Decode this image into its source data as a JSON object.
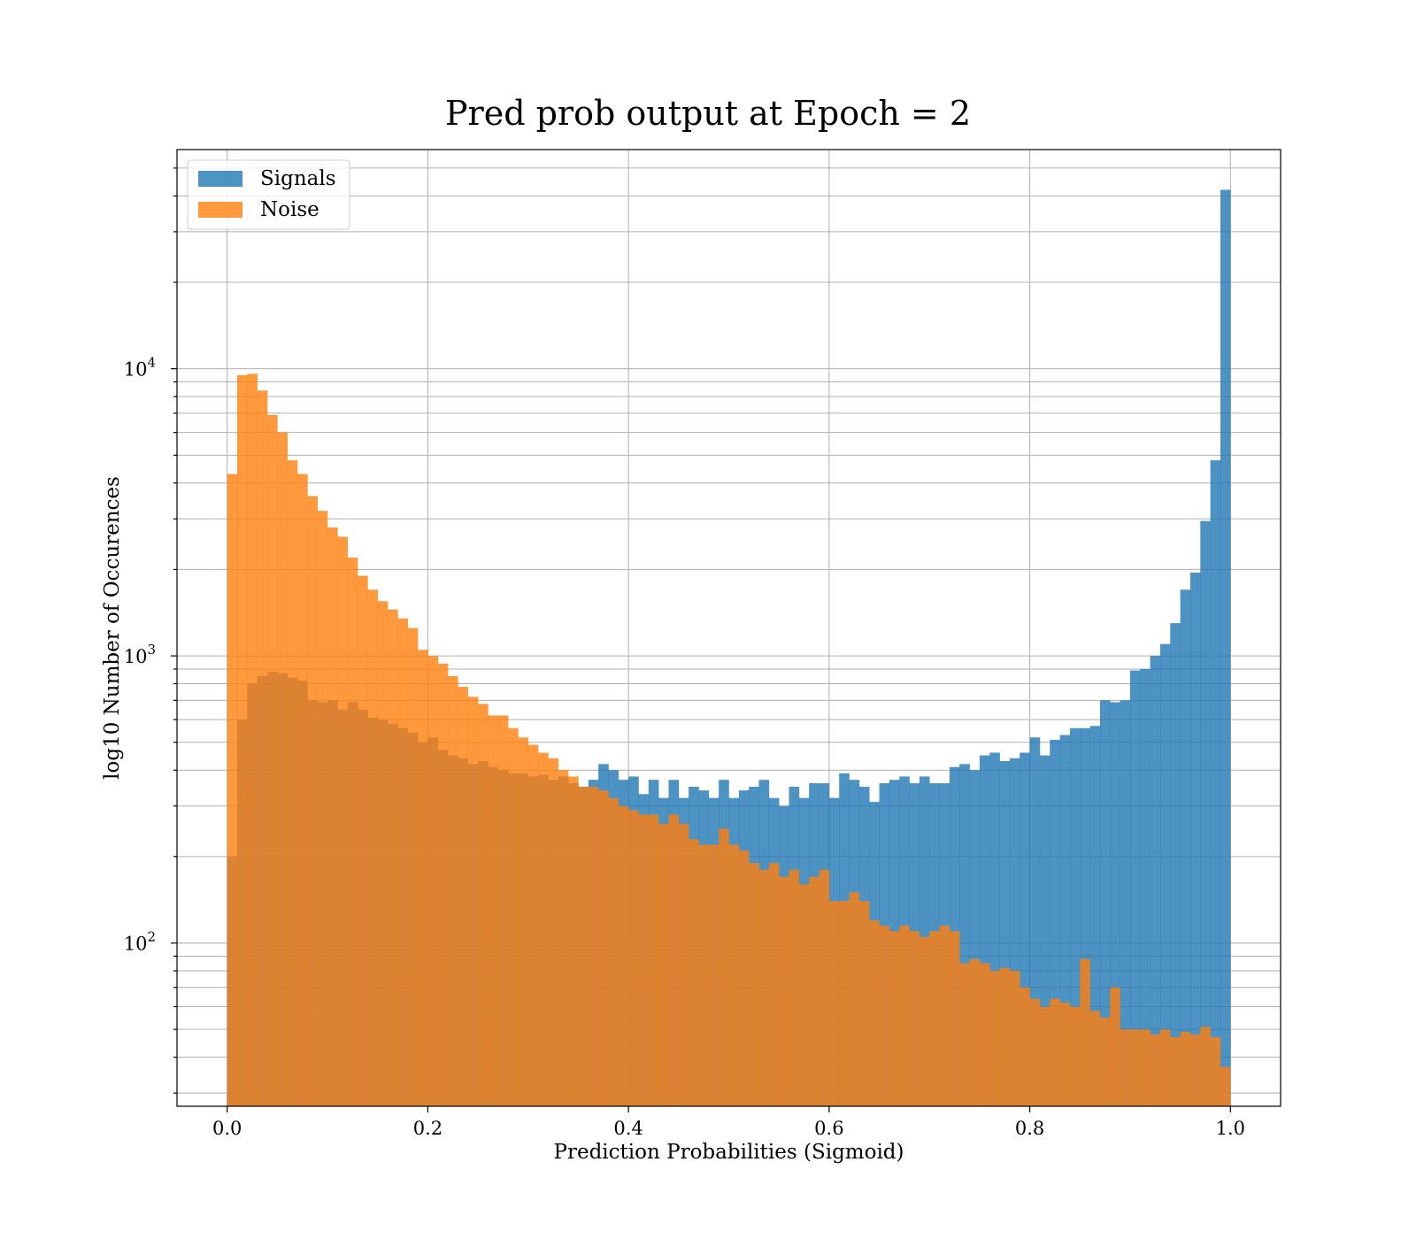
{
  "chart_data": {
    "type": "bar",
    "title": "Pred prob output at Epoch = 2",
    "xlabel": "Prediction Probabilities (Sigmoid)",
    "ylabel": "log10 Number of Occurences",
    "xlim": [
      -0.05,
      1.05
    ],
    "ylim": [
      27,
      58000
    ],
    "yscale": "log",
    "grid": true,
    "legend_position": "top-left",
    "x_ticks": [
      0.0,
      0.2,
      0.4,
      0.6,
      0.8,
      1.0
    ],
    "x_tick_labels": [
      "0.0",
      "0.2",
      "0.4",
      "0.6",
      "0.8",
      "1.0"
    ],
    "y_ticks": [
      100,
      1000,
      10000
    ],
    "y_tick_bases": [
      "10",
      "10",
      "10"
    ],
    "y_tick_exponents": [
      "2",
      "3",
      "4"
    ],
    "bins": 100,
    "bin_range": [
      0.0,
      1.0
    ],
    "series": [
      {
        "name": "Signals",
        "color": "#1f77b4",
        "opacity": 0.8,
        "values": [
          200,
          600,
          800,
          850,
          880,
          870,
          840,
          820,
          700,
          690,
          700,
          650,
          690,
          650,
          610,
          600,
          580,
          560,
          540,
          500,
          520,
          470,
          450,
          440,
          420,
          430,
          410,
          400,
          390,
          390,
          380,
          385,
          370,
          380,
          360,
          350,
          370,
          420,
          400,
          370,
          380,
          330,
          370,
          320,
          370,
          320,
          350,
          340,
          320,
          370,
          320,
          340,
          350,
          370,
          320,
          300,
          350,
          320,
          360,
          360,
          320,
          390,
          370,
          350,
          310,
          360,
          370,
          380,
          360,
          380,
          360,
          360,
          410,
          420,
          400,
          450,
          460,
          430,
          440,
          460,
          520,
          450,
          510,
          530,
          560,
          560,
          570,
          700,
          690,
          700,
          890,
          900,
          1000,
          1100,
          1300,
          1700,
          1950,
          2950,
          4800,
          42000
        ]
      },
      {
        "name": "Noise",
        "color": "#ff7f0e",
        "opacity": 0.8,
        "values": [
          4300,
          9500,
          9600,
          8400,
          6900,
          6000,
          4800,
          4300,
          3600,
          3200,
          2800,
          2600,
          2200,
          1900,
          1700,
          1550,
          1450,
          1350,
          1250,
          1050,
          1000,
          940,
          850,
          780,
          720,
          680,
          620,
          620,
          560,
          520,
          490,
          460,
          440,
          400,
          380,
          350,
          350,
          340,
          320,
          300,
          290,
          280,
          280,
          260,
          280,
          260,
          230,
          220,
          220,
          250,
          220,
          210,
          190,
          180,
          190,
          170,
          180,
          160,
          170,
          180,
          140,
          140,
          150,
          140,
          120,
          115,
          110,
          115,
          110,
          105,
          110,
          115,
          110,
          85,
          88,
          85,
          80,
          82,
          80,
          70,
          64,
          60,
          64,
          62,
          60,
          88,
          58,
          55,
          70,
          50,
          50,
          50,
          48,
          50,
          47,
          49,
          48,
          51,
          47,
          37
        ]
      }
    ]
  }
}
